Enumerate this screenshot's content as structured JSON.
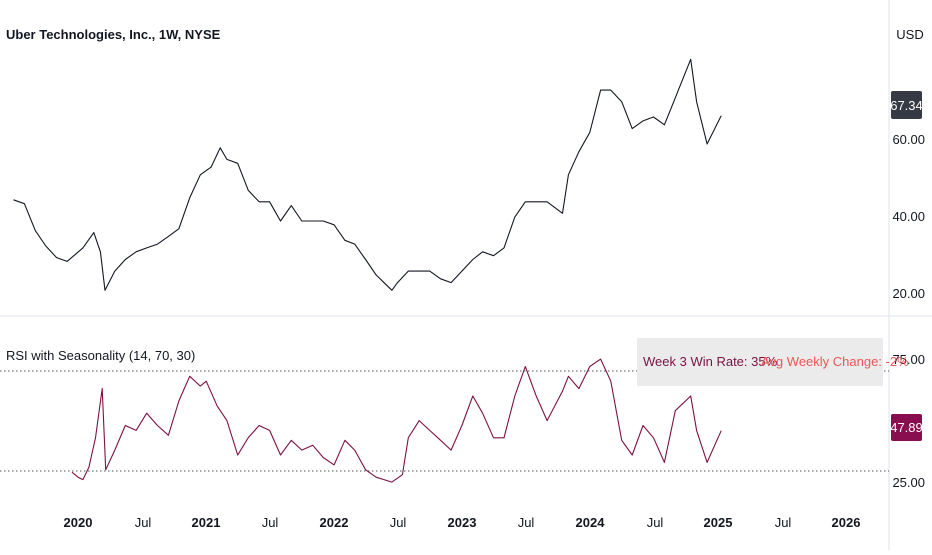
{
  "price_panel": {
    "title": "Uber Technologies, Inc., 1W, NYSE",
    "currency": "USD",
    "last_value": "67.34",
    "y_ticks": [
      "60.00",
      "40.00",
      "20.00"
    ]
  },
  "rsi_panel": {
    "title": "RSI with Seasonality (14, 70, 30)",
    "last_value": "47.89",
    "y_ticks": [
      "75.00",
      "25.00"
    ],
    "annotation_win": "Week 3 Win Rate: 35%",
    "annotation_change": "Avg Weekly Change: -2%"
  },
  "x_axis": {
    "labels": [
      "2020",
      "Jul",
      "2021",
      "Jul",
      "2022",
      "Jul",
      "2023",
      "Jul",
      "2024",
      "Jul",
      "2025",
      "Jul",
      "2026"
    ]
  },
  "colors": {
    "price_line": "#131722",
    "rsi_line": "#7b1245",
    "rsi_highlight": "#26a69a",
    "rsi_badge": "#880e4f",
    "price_badge": "#363a45",
    "annotation_bg": "#ebebeb",
    "annotation_win": "#7b1245",
    "annotation_change": "#f05555",
    "reference_line": "#555555",
    "divider": "#e0e3eb"
  },
  "chart_data": [
    {
      "type": "line",
      "title": "Uber Technologies, Inc., 1W, NYSE",
      "ylabel": "USD",
      "y_ticks": [
        20,
        40,
        60
      ],
      "series": [
        {
          "x": [
            "2019-07-01",
            "2019-08-01",
            "2019-09-01",
            "2019-10-01",
            "2019-11-01",
            "2019-12-01",
            "2020-01-15",
            "2020-02-15",
            "2020-03-05",
            "2020-03-18",
            "2020-04-15",
            "2020-05-15",
            "2020-06-15",
            "2020-07-15",
            "2020-08-15",
            "2020-09-15",
            "2020-10-15",
            "2020-11-15",
            "2020-12-15",
            "2021-01-15",
            "2021-02-10",
            "2021-03-01",
            "2021-04-01",
            "2021-05-01",
            "2021-06-01",
            "2021-07-01",
            "2021-08-01",
            "2021-09-01",
            "2021-10-01",
            "2021-11-01",
            "2021-12-01",
            "2022-01-01",
            "2022-02-01",
            "2022-03-01",
            "2022-04-01",
            "2022-05-01",
            "2022-06-15",
            "2022-07-01",
            "2022-08-01",
            "2022-09-01",
            "2022-10-01",
            "2022-11-01",
            "2022-12-01",
            "2023-01-01",
            "2023-02-01",
            "2023-03-01",
            "2023-04-01",
            "2023-05-01",
            "2023-06-01",
            "2023-07-01",
            "2023-08-01",
            "2023-09-01",
            "2023-10-15",
            "2023-11-01",
            "2023-12-01",
            "2024-01-01",
            "2024-02-01",
            "2024-03-01",
            "2024-04-01",
            "2024-05-01",
            "2024-06-01",
            "2024-07-01",
            "2024-08-01",
            "2024-09-01",
            "2024-10-15",
            "2024-11-01",
            "2024-12-01",
            "2025-01-10"
          ],
          "values": [
            45.5,
            44.5,
            37.5,
            33.5,
            30.5,
            29.5,
            33,
            37,
            32,
            22,
            27,
            30,
            32,
            33,
            34,
            36,
            38,
            46,
            52,
            54,
            59,
            56,
            55,
            48,
            45,
            45,
            40,
            44,
            40,
            40,
            40,
            39,
            35,
            34,
            30,
            26,
            22,
            24,
            27,
            27,
            27,
            25,
            24,
            27,
            30,
            32,
            31,
            33,
            41,
            45,
            45,
            45,
            42,
            52,
            58,
            63,
            74,
            74,
            71,
            64,
            66,
            67,
            65,
            72,
            82,
            71,
            60,
            67.34
          ]
        }
      ]
    },
    {
      "type": "line",
      "title": "RSI with Seasonality (14, 70, 30)",
      "y_ticks": [
        25,
        75
      ],
      "reference_lines": [
        70,
        30
      ],
      "series": [
        {
          "x": [
            "2019-12-15",
            "2020-01-01",
            "2020-01-15",
            "2020-02-01",
            "2020-02-20",
            "2020-03-10",
            "2020-03-20",
            "2020-04-15",
            "2020-05-15",
            "2020-06-15",
            "2020-07-15",
            "2020-08-15",
            "2020-09-15",
            "2020-10-15",
            "2020-11-15",
            "2020-12-15",
            "2021-01-01",
            "2021-02-01",
            "2021-03-01",
            "2021-04-01",
            "2021-05-01",
            "2021-06-01",
            "2021-07-01",
            "2021-08-01",
            "2021-09-01",
            "2021-10-01",
            "2021-11-01",
            "2021-12-01",
            "2022-01-01",
            "2022-02-01",
            "2022-03-01",
            "2022-04-01",
            "2022-05-01",
            "2022-06-15",
            "2022-07-15",
            "2022-08-01",
            "2022-09-01",
            "2022-10-01",
            "2022-11-01",
            "2022-12-01",
            "2023-01-01",
            "2023-02-01",
            "2023-03-01",
            "2023-04-01",
            "2023-05-01",
            "2023-06-01",
            "2023-07-01",
            "2023-08-01",
            "2023-09-01",
            "2023-10-15",
            "2023-11-01",
            "2023-12-01",
            "2024-01-01",
            "2024-02-01",
            "2024-03-01",
            "2024-04-01",
            "2024-05-01",
            "2024-06-01",
            "2024-07-01",
            "2024-08-01",
            "2024-09-01",
            "2024-10-15",
            "2024-11-01",
            "2024-12-01",
            "2025-01-10"
          ],
          "values": [
            31,
            29,
            28,
            33,
            45,
            65,
            32,
            40,
            50,
            48,
            55,
            50,
            46,
            60,
            70,
            66,
            68,
            58,
            52,
            38,
            45,
            50,
            48,
            38,
            44,
            40,
            42,
            37,
            34,
            44,
            40,
            32,
            29,
            27,
            30,
            45,
            52,
            48,
            44,
            40,
            50,
            62,
            55,
            45,
            45,
            62,
            74,
            62,
            52,
            64,
            70,
            65,
            74,
            77,
            68,
            44,
            38,
            50,
            45,
            35,
            56,
            62,
            48,
            35,
            47.89
          ]
        }
      ]
    }
  ]
}
